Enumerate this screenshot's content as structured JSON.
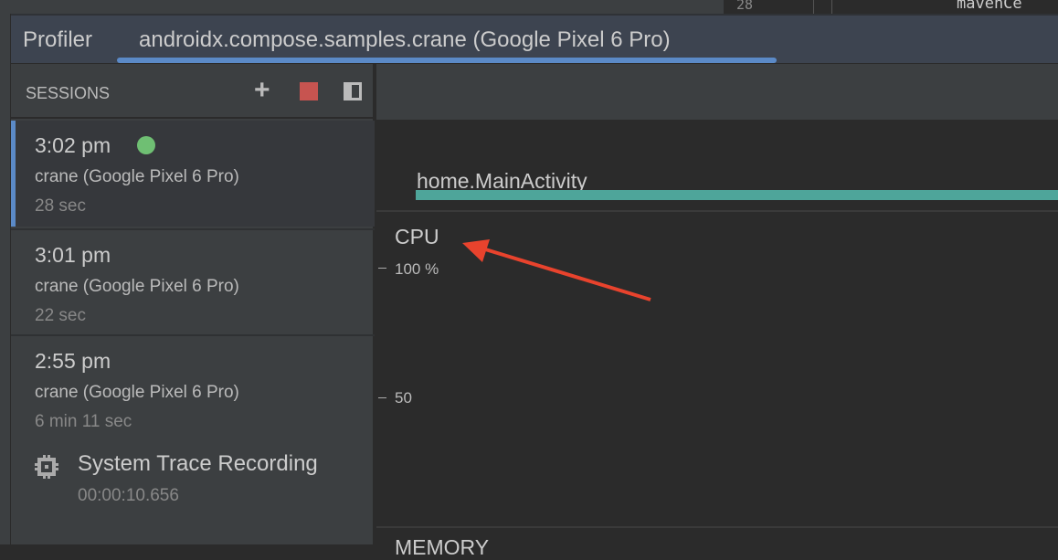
{
  "editor": {
    "line_number": "28",
    "code": "mavenCe"
  },
  "tabs": {
    "profiler": "Profiler",
    "active": "androidx.compose.samples.crane (Google Pixel 6 Pro)"
  },
  "sessions": {
    "header": "SESSIONS",
    "items": [
      {
        "time": "3:02 pm",
        "device": "crane (Google Pixel 6 Pro)",
        "duration": "28 sec",
        "live": true
      },
      {
        "time": "3:01 pm",
        "device": "crane (Google Pixel 6 Pro)",
        "duration": "22 sec"
      },
      {
        "time": "2:55 pm",
        "device": "crane (Google Pixel 6 Pro)",
        "duration": "6 min 11 sec"
      }
    ],
    "trace": {
      "label": "System Trace Recording",
      "duration": "00:00:10.656"
    }
  },
  "main": {
    "activity": "home.MainActivity",
    "cpu_label": "CPU",
    "cpu_ticks": [
      "100 %",
      "50"
    ],
    "memory_label": "MEMORY"
  },
  "colors": {
    "accent": "#5b8ac7",
    "live": "#6fbf73",
    "stop": "#c75450",
    "activity_bar": "#4ea59a",
    "arrow": "#e8432d"
  }
}
